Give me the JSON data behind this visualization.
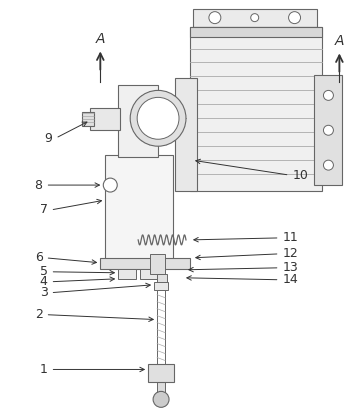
{
  "bg_color": "#f5f5f5",
  "lc": "#666666",
  "dc": "#333333",
  "fig_width": 3.6,
  "fig_height": 4.16,
  "dpi": 100
}
